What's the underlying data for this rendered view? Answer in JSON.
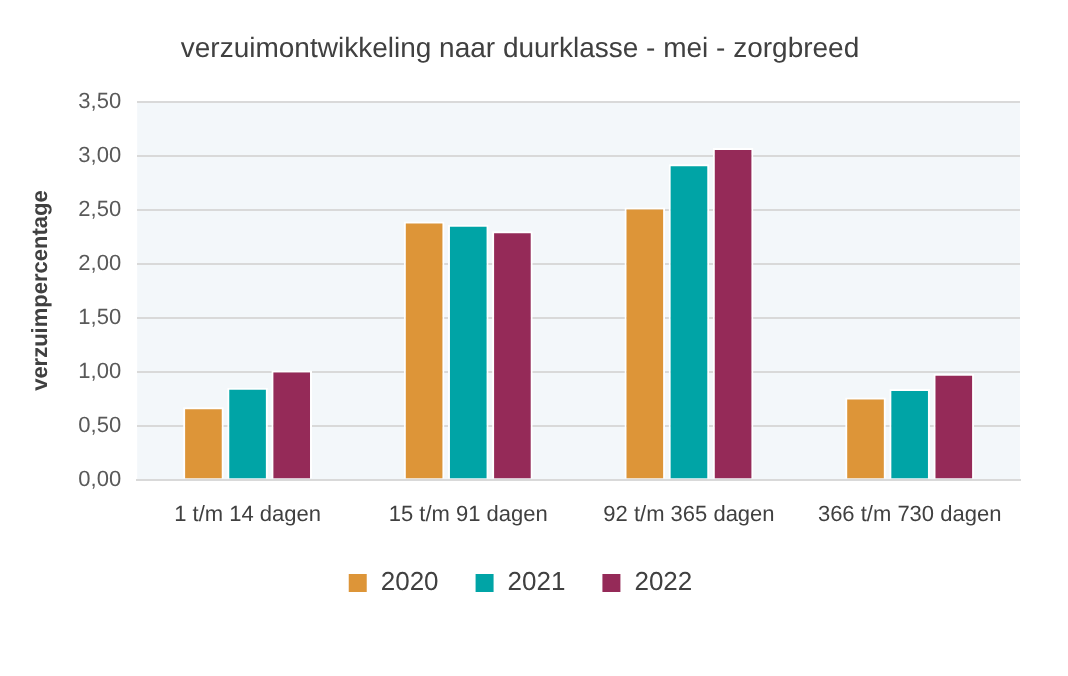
{
  "chart_data": {
    "type": "bar",
    "title": "verzuimontwikkeling naar duurklasse - mei - zorgbreed",
    "ylabel": "verzuimpercentage",
    "categories": [
      "1 t/m 14 dagen",
      "15 t/m 91 dagen",
      "92 t/m 365 dagen",
      "366 t/m 730 dagen"
    ],
    "series": [
      {
        "name": "2020",
        "color": "#dd9538",
        "values": [
          0.67,
          2.39,
          2.52,
          0.76
        ]
      },
      {
        "name": "2021",
        "color": "#00a4a6",
        "values": [
          0.85,
          2.36,
          2.92,
          0.84
        ]
      },
      {
        "name": "2022",
        "color": "#952a58",
        "values": [
          1.01,
          2.3,
          3.07,
          0.98
        ]
      }
    ],
    "ylim": [
      0,
      3.5
    ],
    "yticks": [
      {
        "value": 0,
        "label": "0,00"
      },
      {
        "value": 0.5,
        "label": "0,50"
      },
      {
        "value": 1,
        "label": "1,00"
      },
      {
        "value": 1.5,
        "label": "1,50"
      },
      {
        "value": 2,
        "label": "2,00"
      },
      {
        "value": 2.5,
        "label": "2,50"
      },
      {
        "value": 3,
        "label": "3,00"
      },
      {
        "value": 3.5,
        "label": "3,50"
      }
    ],
    "grid": "y",
    "legend": "bottom"
  }
}
